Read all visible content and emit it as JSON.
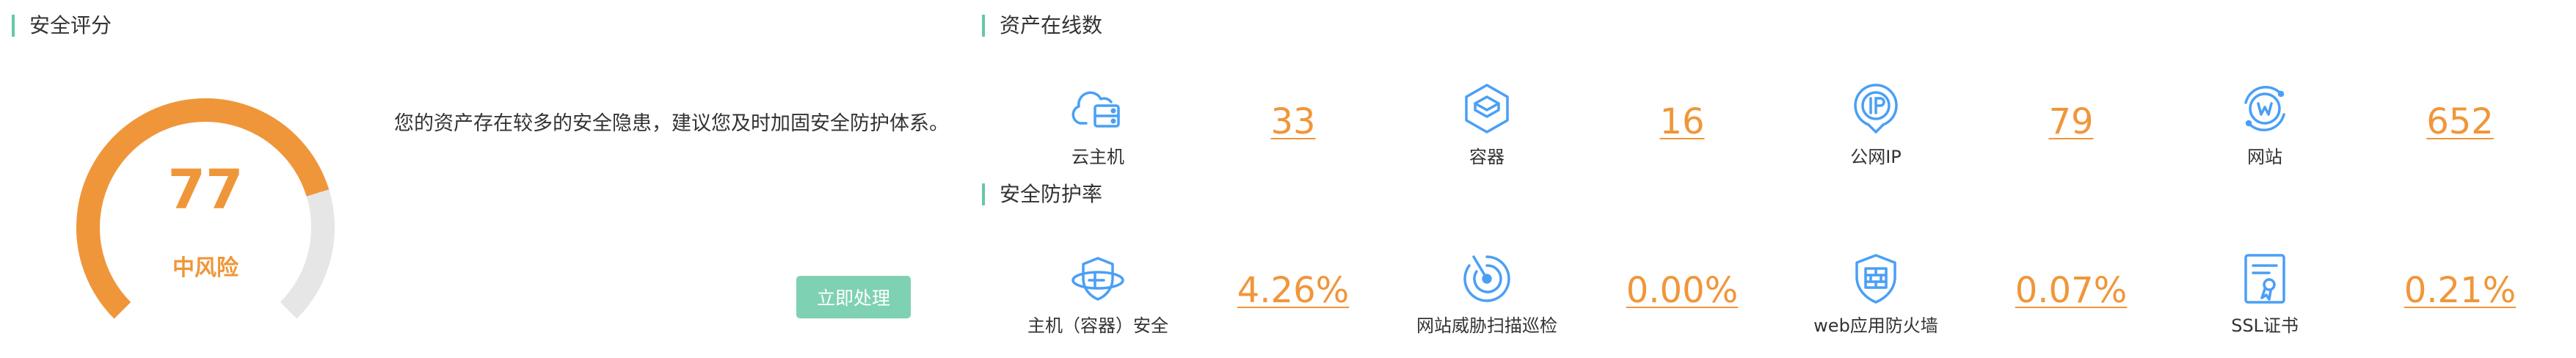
{
  "score_section": {
    "title": "安全评分",
    "score": "77",
    "risk_level": "中风险",
    "score_fraction": 0.77,
    "advice": "您的资产存在较多的安全隐患，建议您及时加固安全防护体系。",
    "action_label": "立即处理"
  },
  "assets_section": {
    "title": "资产在线数",
    "items": [
      {
        "label": "云主机",
        "value": "33",
        "icon": "cloud-server-icon"
      },
      {
        "label": "容器",
        "value": "16",
        "icon": "container-icon"
      },
      {
        "label": "公网IP",
        "value": "79",
        "icon": "ip-icon"
      },
      {
        "label": "网站",
        "value": "652",
        "icon": "website-icon"
      }
    ]
  },
  "protection_section": {
    "title": "安全防护率",
    "items": [
      {
        "label": "主机（容器）安全",
        "value": "4.26%",
        "icon": "host-security-icon"
      },
      {
        "label": "网站威胁扫描巡检",
        "value": "0.00%",
        "icon": "threat-scan-icon"
      },
      {
        "label": "web应用防火墙",
        "value": "0.07%",
        "icon": "firewall-shield-icon"
      },
      {
        "label": "SSL证书",
        "value": "0.21%",
        "icon": "ssl-certificate-icon"
      }
    ]
  },
  "colors": {
    "accent": "#f0963a",
    "icon_blue": "#4a9ff5",
    "section_bar": "#66c8a8",
    "button": "#7fd1b3",
    "gauge_track": "#e6e6e6"
  }
}
